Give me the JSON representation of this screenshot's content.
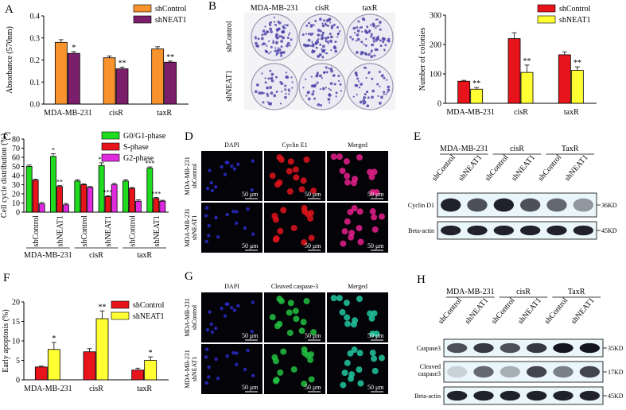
{
  "panels": {
    "A": {
      "label": "A",
      "chart_data": {
        "type": "bar",
        "ylabel": "Absorbance (570nm)",
        "categories": [
          "MDA-MB-231",
          "cisR",
          "taxR"
        ],
        "ylim": [
          0.0,
          0.4
        ],
        "yticks": [
          "0.0",
          "0.1",
          "0.2",
          "0.3",
          "0.4"
        ],
        "series": [
          {
            "name": "shControl",
            "color": "#f7922d",
            "values": [
              0.28,
              0.21,
              0.25
            ],
            "errors": [
              0.012,
              0.008,
              0.01
            ]
          },
          {
            "name": "shNEAT1",
            "color": "#7b1f6b",
            "values": [
              0.23,
              0.16,
              0.19
            ],
            "errors": [
              0.008,
              0.008,
              0.005
            ]
          }
        ],
        "significance": [
          "*",
          "**",
          "**"
        ]
      }
    },
    "B": {
      "label": "B",
      "plates": {
        "cols": [
          "MDA-MB-231",
          "cisR",
          "taxR"
        ],
        "rows": [
          "shControl",
          "shNEAT1"
        ]
      },
      "chart_data": {
        "type": "bar",
        "ylabel": "Number of colonies",
        "categories": [
          "MDA-MB-231",
          "cisR",
          "taxR"
        ],
        "ylim": [
          0,
          300
        ],
        "yticks": [
          "0",
          "100",
          "200",
          "300"
        ],
        "series": [
          {
            "name": "shControl",
            "color": "#e8141c",
            "values": [
              75,
              220,
              165
            ],
            "errors": [
              3,
              20,
              10
            ]
          },
          {
            "name": "shNEAT1",
            "color": "#ffff33",
            "values": [
              48,
              105,
              112
            ],
            "errors": [
              6,
              25,
              12
            ]
          }
        ],
        "significance": [
          "**",
          "**",
          "**"
        ]
      }
    },
    "C": {
      "label": "C",
      "chart_data": {
        "type": "bar",
        "ylabel": "Cell cycle distribution (%)",
        "categories": [
          "shControl",
          "shNEAT1",
          "shControl",
          "shNEAT1",
          "shControl",
          "shNEAT1"
        ],
        "groups": [
          "MDA-MB-231",
          "cisR",
          "taxR"
        ],
        "ylim": [
          0,
          80
        ],
        "yticks": [
          "0",
          "10",
          "20",
          "30",
          "40",
          "50",
          "60",
          "70",
          "80"
        ],
        "series": [
          {
            "name": "G0/G1-phase",
            "color": "#1fdc1f",
            "values": [
              50,
              61,
              34,
              51,
              34,
              48
            ],
            "errors": [
              1.5,
              3,
              1.5,
              3,
              1.5,
              1.5
            ]
          },
          {
            "name": "S-phase",
            "color": "#e8141c",
            "values": [
              35,
              28,
              30,
              17,
              26,
              15
            ],
            "errors": [
              1,
              1,
              1,
              1,
              1,
              1
            ]
          },
          {
            "name": "G2-phase",
            "color": "#e02ae0",
            "values": [
              9,
              8,
              27,
              30,
              12,
              12
            ],
            "errors": [
              1.5,
              1.5,
              1,
              1.5,
              1.5,
              1
            ]
          }
        ],
        "significance": [
          [
            "",
            "",
            ""
          ],
          [
            "*",
            "**",
            ""
          ],
          [
            "",
            "",
            ""
          ],
          [
            "**",
            "***",
            ""
          ],
          [
            "",
            "",
            ""
          ],
          [
            "***",
            "***",
            ""
          ]
        ]
      }
    },
    "D": {
      "label": "D",
      "cols": [
        "DAPI",
        "Cyclin E1",
        "Merged"
      ],
      "rows": [
        [
          "MDA-MB-231",
          "shControl"
        ],
        [
          "MDA-MB-231",
          "shNEAT1"
        ]
      ],
      "scalebar": "50 μm"
    },
    "E": {
      "label": "E",
      "groups": [
        "MDA-MB-231",
        "cisR",
        "TaxR"
      ],
      "lanes": [
        "shControl",
        "shNEAT1",
        "shControl",
        "shNEAT1",
        "shControl",
        "shNEAT1"
      ],
      "blots": [
        {
          "name": "Cyclin D1",
          "size": "36KD"
        },
        {
          "name": "Beta-actin",
          "size": "45KD"
        }
      ]
    },
    "F": {
      "label": "F",
      "chart_data": {
        "type": "bar",
        "ylabel": "Early apoptosis (%)",
        "categories": [
          "MDA-MB-231",
          "cisR",
          "taxR"
        ],
        "ylim": [
          0,
          20
        ],
        "yticks": [
          "0",
          "5",
          "10",
          "15",
          "20"
        ],
        "series": [
          {
            "name": "shControl",
            "color": "#e8141c",
            "values": [
              3.3,
              7.2,
              2.5
            ],
            "errors": [
              0.2,
              0.8,
              0.5
            ]
          },
          {
            "name": "shNEAT1",
            "color": "#ffff33",
            "values": [
              7.8,
              15.7,
              5.0
            ],
            "errors": [
              1.8,
              2.0,
              0.9
            ]
          }
        ],
        "significance": [
          "*",
          "**",
          "*"
        ]
      }
    },
    "G": {
      "label": "G",
      "cols": [
        "DAPI",
        "Cleaved caspase-3",
        "Merged"
      ],
      "rows": [
        [
          "MDA-MB-231",
          "shControl"
        ],
        [
          "MDA-MB-231",
          "shNEAT1"
        ]
      ],
      "scalebar": "50 μm"
    },
    "H": {
      "label": "H",
      "groups": [
        "MDA-MB-231",
        "cisR",
        "TaxR"
      ],
      "lanes": [
        "shControl",
        "shNEAT1",
        "shControl",
        "shNEAT1",
        "shControl",
        "shNEAT1"
      ],
      "blots": [
        {
          "name": "Caspase3",
          "size": "35KD"
        },
        {
          "name": "Cleaved caspase3",
          "size": "17KD"
        },
        {
          "name": "Beta-actin",
          "size": "45KD"
        }
      ]
    }
  }
}
